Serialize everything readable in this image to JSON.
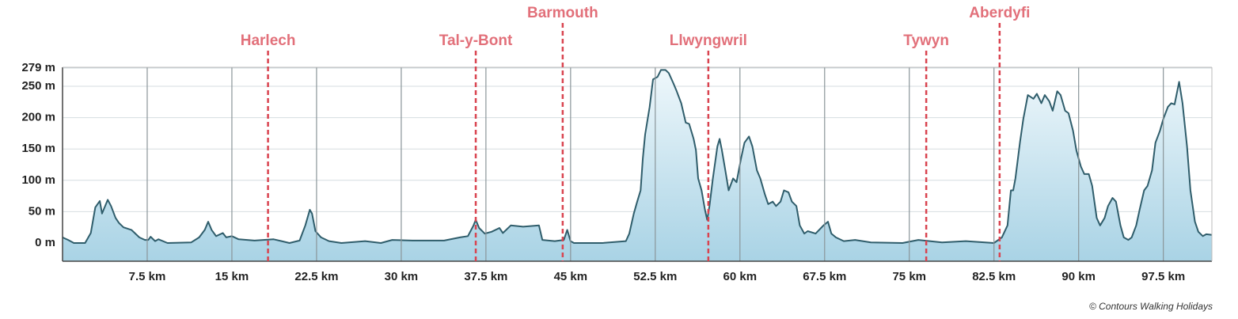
{
  "chart_data": {
    "type": "area",
    "xlim": [
      0,
      101.8
    ],
    "ylim": [
      -29,
      279
    ],
    "xticks": [
      {
        "value": 7.5,
        "label": "7.5 km"
      },
      {
        "value": 15,
        "label": "15 km"
      },
      {
        "value": 22.5,
        "label": "22.5 km"
      },
      {
        "value": 30,
        "label": "30 km"
      },
      {
        "value": 37.5,
        "label": "37.5 km"
      },
      {
        "value": 45,
        "label": "45 km"
      },
      {
        "value": 52.5,
        "label": "52.5 km"
      },
      {
        "value": 60,
        "label": "60 km"
      },
      {
        "value": 67.5,
        "label": "67.5 km"
      },
      {
        "value": 75,
        "label": "75 km"
      },
      {
        "value": 82.5,
        "label": "82.5 km"
      },
      {
        "value": 90,
        "label": "90 km"
      },
      {
        "value": 97.5,
        "label": "97.5 km"
      }
    ],
    "yticks": [
      {
        "value": 0,
        "label": "0 m"
      },
      {
        "value": 50,
        "label": "50 m"
      },
      {
        "value": 100,
        "label": "100 m"
      },
      {
        "value": 150,
        "label": "150 m"
      },
      {
        "value": 200,
        "label": "200 m"
      },
      {
        "value": 250,
        "label": "250 m"
      },
      {
        "value": 279,
        "label": "279 m"
      }
    ],
    "grid": true,
    "series": [
      {
        "color": "#2f5d6b",
        "x": [
          0,
          0.5,
          1.0,
          2.0,
          2.5,
          2.9,
          3.3,
          3.5,
          4.0,
          4.3,
          4.7,
          5.0,
          5.4,
          6.1,
          6.8,
          7.3,
          7.6,
          7.8,
          8.2,
          8.5,
          9.3,
          11.4,
          12.1,
          12.6,
          12.9,
          13.2,
          13.6,
          14.2,
          14.5,
          15.0,
          15.6,
          17.0,
          18.7,
          19.4,
          20.1,
          21.0,
          21.5,
          21.9,
          22.1,
          22.4,
          22.9,
          23.6,
          24.7,
          26.8,
          28.2,
          29.2,
          31.0,
          33.8,
          35.2,
          35.9,
          36.4,
          36.6,
          36.9,
          37.4,
          38.0,
          38.7,
          39.0,
          39.7,
          40.8,
          42.2,
          42.5,
          43.6,
          44.4,
          44.7,
          45.0,
          45.3,
          47.8,
          49.9,
          50.2,
          50.6,
          50.9,
          51.2,
          51.4,
          51.6,
          52.0,
          52.3,
          52.7,
          53.0,
          53.4,
          53.7,
          54.1,
          54.4,
          54.8,
          55.2,
          55.5,
          55.9,
          56.1,
          56.3,
          56.6,
          56.9,
          57.1,
          57.3,
          57.6,
          58.0,
          58.2,
          58.4,
          58.7,
          59.0,
          59.4,
          59.7,
          60.1,
          60.4,
          60.8,
          61.1,
          61.5,
          61.8,
          62.2,
          62.5,
          62.9,
          63.2,
          63.6,
          63.9,
          64.3,
          64.6,
          65.0,
          65.3,
          65.7,
          66.0,
          66.7,
          67.4,
          67.8,
          68.1,
          68.5,
          69.2,
          70.2,
          71.6,
          74.4,
          75.8,
          77.9,
          80.0,
          82.5,
          83.2,
          83.7,
          84.0,
          84.2,
          84.4,
          84.8,
          85.1,
          85.5,
          86.0,
          86.3,
          86.7,
          87.0,
          87.4,
          87.7,
          88.1,
          88.4,
          88.8,
          89.1,
          89.5,
          89.8,
          90.2,
          90.5,
          90.9,
          91.2,
          91.6,
          91.9,
          92.3,
          92.6,
          93.0,
          93.3,
          93.7,
          94.0,
          94.4,
          94.7,
          95.1,
          95.4,
          95.8,
          96.1,
          96.5,
          96.8,
          97.2,
          97.5,
          97.9,
          98.2,
          98.5,
          98.9,
          99.2,
          99.6,
          99.9,
          100.3,
          100.6,
          101.0,
          101.3,
          101.8
        ],
        "values": [
          9,
          5,
          0,
          0,
          16,
          57,
          67,
          47,
          69,
          59,
          40,
          32,
          25,
          21,
          9,
          5,
          5,
          10,
          3,
          6,
          0,
          1,
          9,
          21,
          34,
          21,
          11,
          16,
          9,
          11,
          6,
          4,
          6,
          3,
          0,
          4,
          28,
          53,
          47,
          19,
          9,
          3,
          0,
          3,
          0,
          5,
          4,
          4,
          9,
          11,
          28,
          37,
          24,
          15,
          18,
          24,
          16,
          28,
          26,
          28,
          5,
          3,
          5,
          21,
          3,
          0,
          0,
          3,
          15,
          47,
          66,
          84,
          135,
          173,
          217,
          261,
          265,
          276,
          276,
          271,
          255,
          242,
          223,
          192,
          190,
          166,
          148,
          103,
          84,
          53,
          37,
          59,
          103,
          154,
          166,
          148,
          116,
          84,
          103,
          97,
          135,
          160,
          170,
          154,
          116,
          103,
          78,
          62,
          66,
          59,
          66,
          84,
          81,
          66,
          59,
          28,
          15,
          19,
          15,
          28,
          34,
          15,
          9,
          3,
          5,
          1,
          0,
          5,
          1,
          3,
          0,
          9,
          28,
          84,
          84,
          103,
          160,
          198,
          236,
          230,
          238,
          223,
          236,
          226,
          211,
          242,
          236,
          211,
          207,
          179,
          148,
          122,
          110,
          110,
          91,
          40,
          28,
          40,
          59,
          72,
          66,
          28,
          9,
          5,
          9,
          28,
          53,
          84,
          91,
          116,
          160,
          179,
          198,
          217,
          223,
          221,
          257,
          223,
          154,
          84,
          34,
          18,
          11,
          14,
          13
        ]
      }
    ],
    "annotations": [
      {
        "label": "Harlech",
        "x": 18.2
      },
      {
        "label": "Tal-y-Bont",
        "x": 36.6
      },
      {
        "label": "Barmouth",
        "x": 44.3
      },
      {
        "label": "Llwyngwril",
        "x": 57.2
      },
      {
        "label": "Tywyn",
        "x": 76.5
      },
      {
        "label": "Aberdyfi",
        "x": 83.0
      }
    ],
    "annotation_color": "#d9434f",
    "credit": "© Contours Walking Holidays"
  }
}
